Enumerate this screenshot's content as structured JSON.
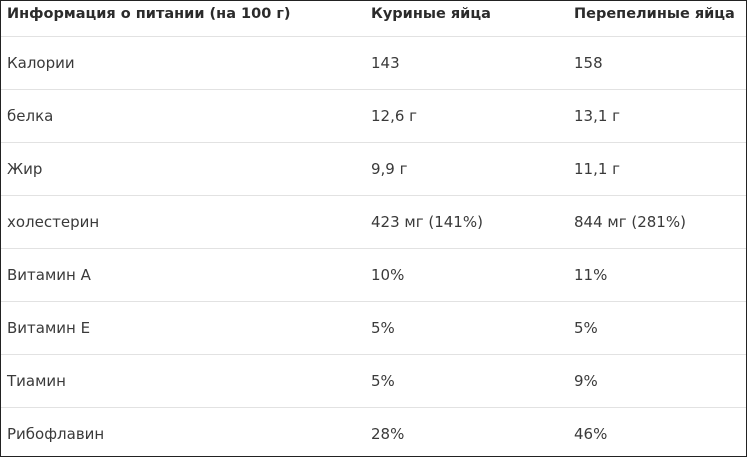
{
  "table": {
    "headers": [
      "Информация о питании (на 100 г)",
      "Куриные яйца",
      "Перепелиные яйца"
    ],
    "rows": [
      [
        "Калории",
        "143",
        "158"
      ],
      [
        "белка",
        "12,6 г",
        "13,1 г"
      ],
      [
        "Жир",
        "9,9 г",
        "11,1 г"
      ],
      [
        "холестерин",
        "423 мг (141%)",
        "844 мг (281%)"
      ],
      [
        "Витамин А",
        "10%",
        "11%"
      ],
      [
        "Витамин Е",
        "5%",
        "5%"
      ],
      [
        "Тиамин",
        "5%",
        "9%"
      ],
      [
        "Рибофлавин",
        "28%",
        "46%"
      ]
    ]
  }
}
